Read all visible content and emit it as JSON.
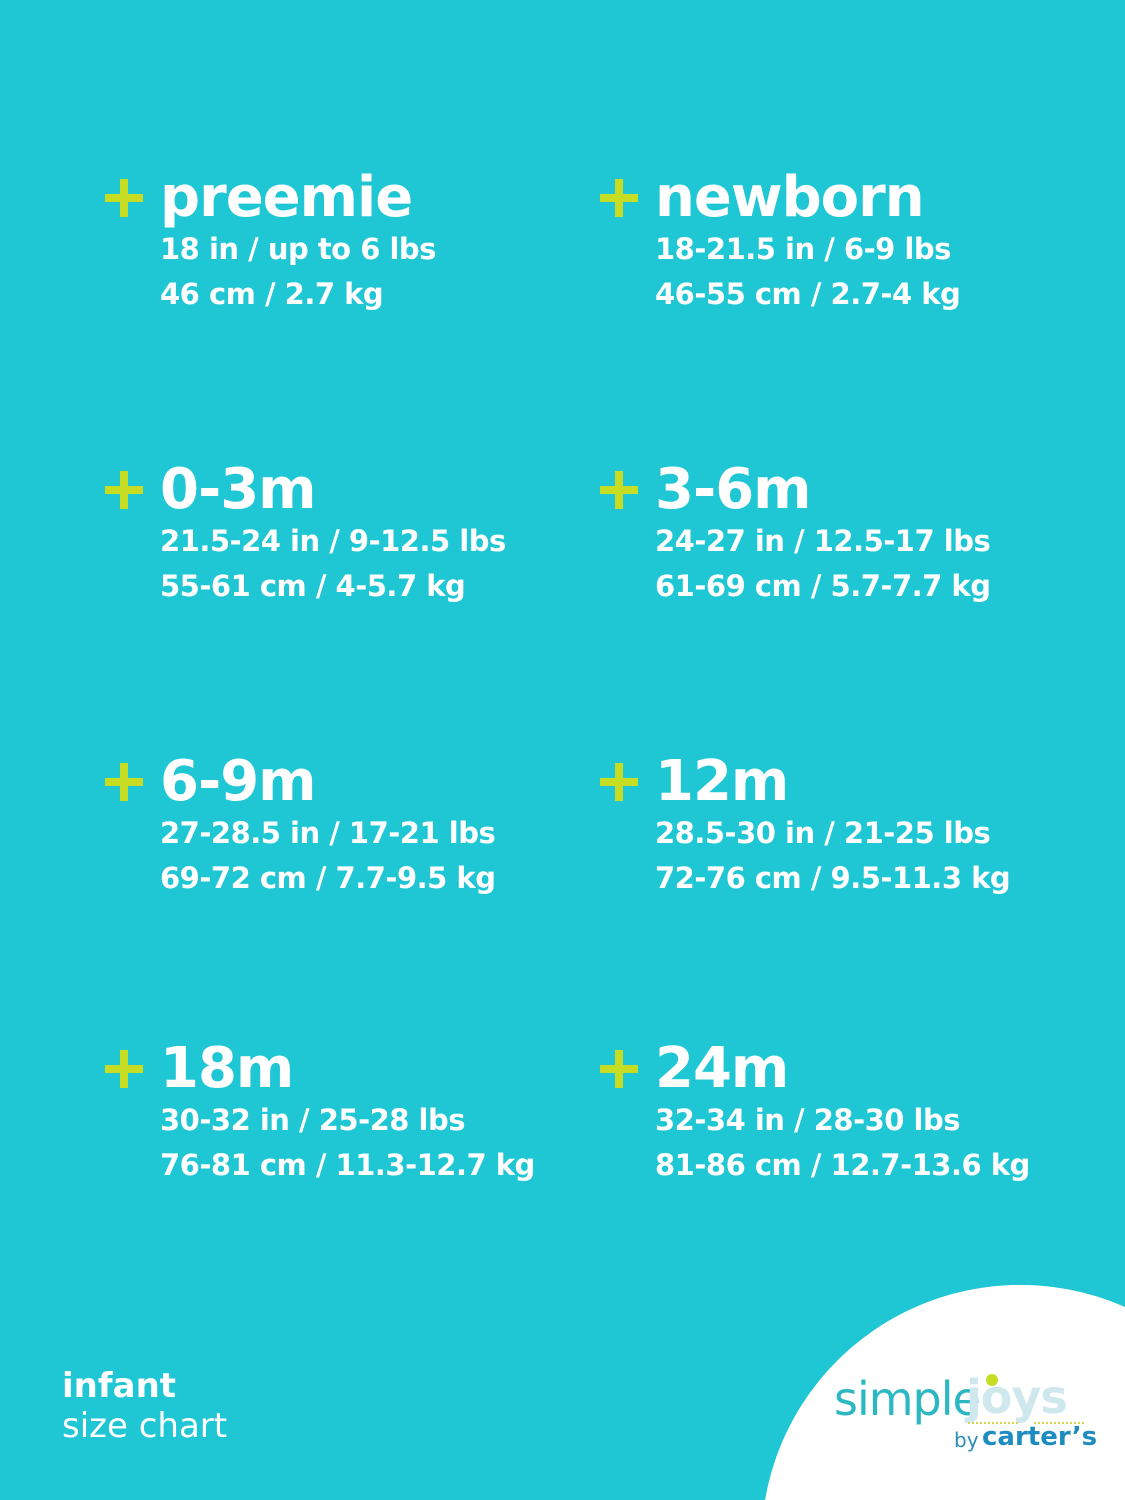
{
  "colors": {
    "background": "#1fc6d3",
    "plus_accent": "#c6dd23",
    "text": "#ffffff"
  },
  "sizes": [
    {
      "name": "preemie",
      "imperial": "18 in / up to 6 lbs",
      "metric": "46 cm / 2.7 kg"
    },
    {
      "name": "newborn",
      "imperial": "18-21.5 in / 6-9 lbs",
      "metric": "46-55 cm / 2.7-4 kg"
    },
    {
      "name": "0-3m",
      "imperial": "21.5-24 in / 9-12.5 lbs",
      "metric": "55-61 cm / 4-5.7 kg"
    },
    {
      "name": "3-6m",
      "imperial": "24-27 in / 12.5-17 lbs",
      "metric": "61-69 cm / 5.7-7.7 kg"
    },
    {
      "name": "6-9m",
      "imperial": "27-28.5 in / 17-21 lbs",
      "metric": "69-72 cm / 7.7-9.5 kg"
    },
    {
      "name": "12m",
      "imperial": "28.5-30 in / 21-25 lbs",
      "metric": "72-76 cm / 9.5-11.3 kg"
    },
    {
      "name": "18m",
      "imperial": "30-32 in / 25-28 lbs",
      "metric": "76-81 cm / 11.3-12.7 kg"
    },
    {
      "name": "24m",
      "imperial": "32-34 in / 28-30 lbs",
      "metric": "81-86 cm / 12.7-13.6 kg"
    }
  ],
  "footer": {
    "line1": "infant",
    "line2": "size chart"
  },
  "logo": {
    "simple": "simple",
    "joys": "joys",
    "by": "by",
    "carters": "carter’s"
  }
}
